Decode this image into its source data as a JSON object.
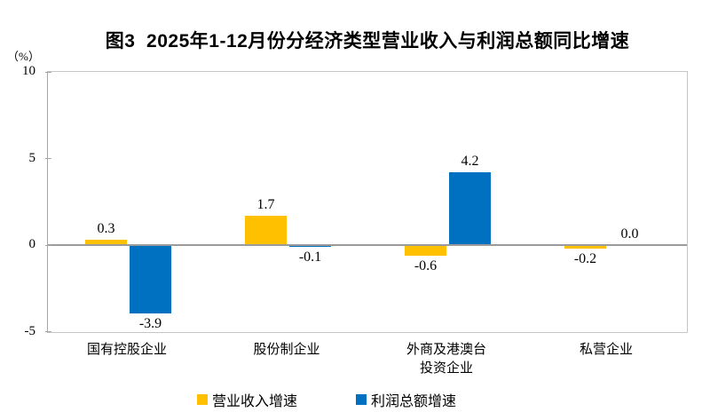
{
  "header": {
    "title": "图3  2025年1-12月份分经济类型营业收入与利润总额同比增速"
  },
  "colors": {
    "revenue_bar": "#FFC000",
    "profit_bar": "#0070C0",
    "zero_line": "#9B9B9B",
    "plot_border": "#C6C6C6"
  },
  "chart_data": {
    "type": "bar",
    "title": "图3  2025年1-12月份分经济类型营业收入与利润总额同比增速",
    "ylabel_unit": "（%）",
    "categories": [
      "国有控股企业",
      "股份制企业",
      "外商及港澳台\n投资企业",
      "私营企业"
    ],
    "series": [
      {
        "name": "营业收入增速",
        "color": "#FFC000",
        "values": [
          0.3,
          1.7,
          -0.6,
          -0.2
        ]
      },
      {
        "name": "利润总额增速",
        "color": "#0070C0",
        "values": [
          -3.9,
          -0.1,
          4.2,
          0.0
        ]
      }
    ],
    "ylim": [
      -5,
      10
    ],
    "yticks": [
      10,
      5,
      0,
      -5
    ],
    "grid": false,
    "value_labels": true,
    "value_label_decimals": 1,
    "legend_position": "bottom"
  }
}
